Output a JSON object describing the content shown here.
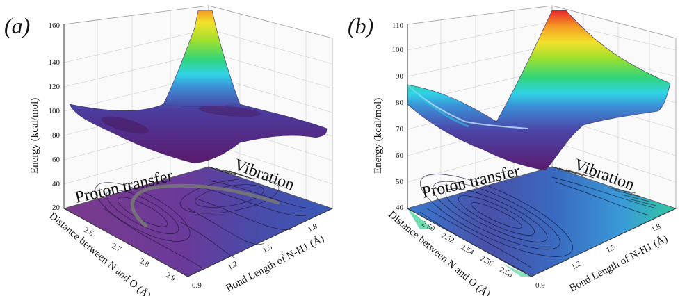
{
  "chart_data": [
    {
      "type": "surface3d",
      "panel_label": "(a)",
      "zlabel": "Energy (kcal/mol)",
      "xlabel": "Bond Length of N-H1 (Å)",
      "ylabel": "Distance between N and O (Å)",
      "z_ticks": [
        "20",
        "40",
        "60",
        "80",
        "100",
        "120",
        "140",
        "160"
      ],
      "x_ticks": [
        "0.9",
        "1.2",
        "1.5",
        "1.8"
      ],
      "y_ticks": [
        "2.6",
        "2.7",
        "2.8",
        "2.9"
      ],
      "zlim": [
        20,
        160
      ],
      "annotations": [
        "Proton transfer",
        "Vibration"
      ],
      "colormap": [
        "#5b1a6e",
        "#4a3a9e",
        "#3b8fd6",
        "#2fd3e6",
        "#31d57a",
        "#9ee02f",
        "#f2e22b",
        "#f59a22",
        "#e8262a"
      ]
    },
    {
      "type": "surface3d",
      "panel_label": "(b)",
      "zlabel": "Energy (kcal/mol)",
      "xlabel": "Bond Length of N-H1 (Å)",
      "ylabel": "Distance between N and O (Å)",
      "z_ticks": [
        "40",
        "50",
        "60",
        "70",
        "80",
        "90",
        "100",
        "110"
      ],
      "x_ticks": [
        "0.9",
        "1.2",
        "1.5",
        "1.8"
      ],
      "y_ticks": [
        "2.50",
        "2.52",
        "2.54",
        "2.56",
        "2.58"
      ],
      "zlim": [
        40,
        110
      ],
      "annotations": [
        "Proton transfer",
        "Vibration"
      ],
      "colormap": [
        "#5b1a6e",
        "#4a3a9e",
        "#3b8fd6",
        "#2fd3e6",
        "#31d57a",
        "#9ee02f",
        "#f2e22b",
        "#f59a22",
        "#e8262a"
      ]
    }
  ]
}
